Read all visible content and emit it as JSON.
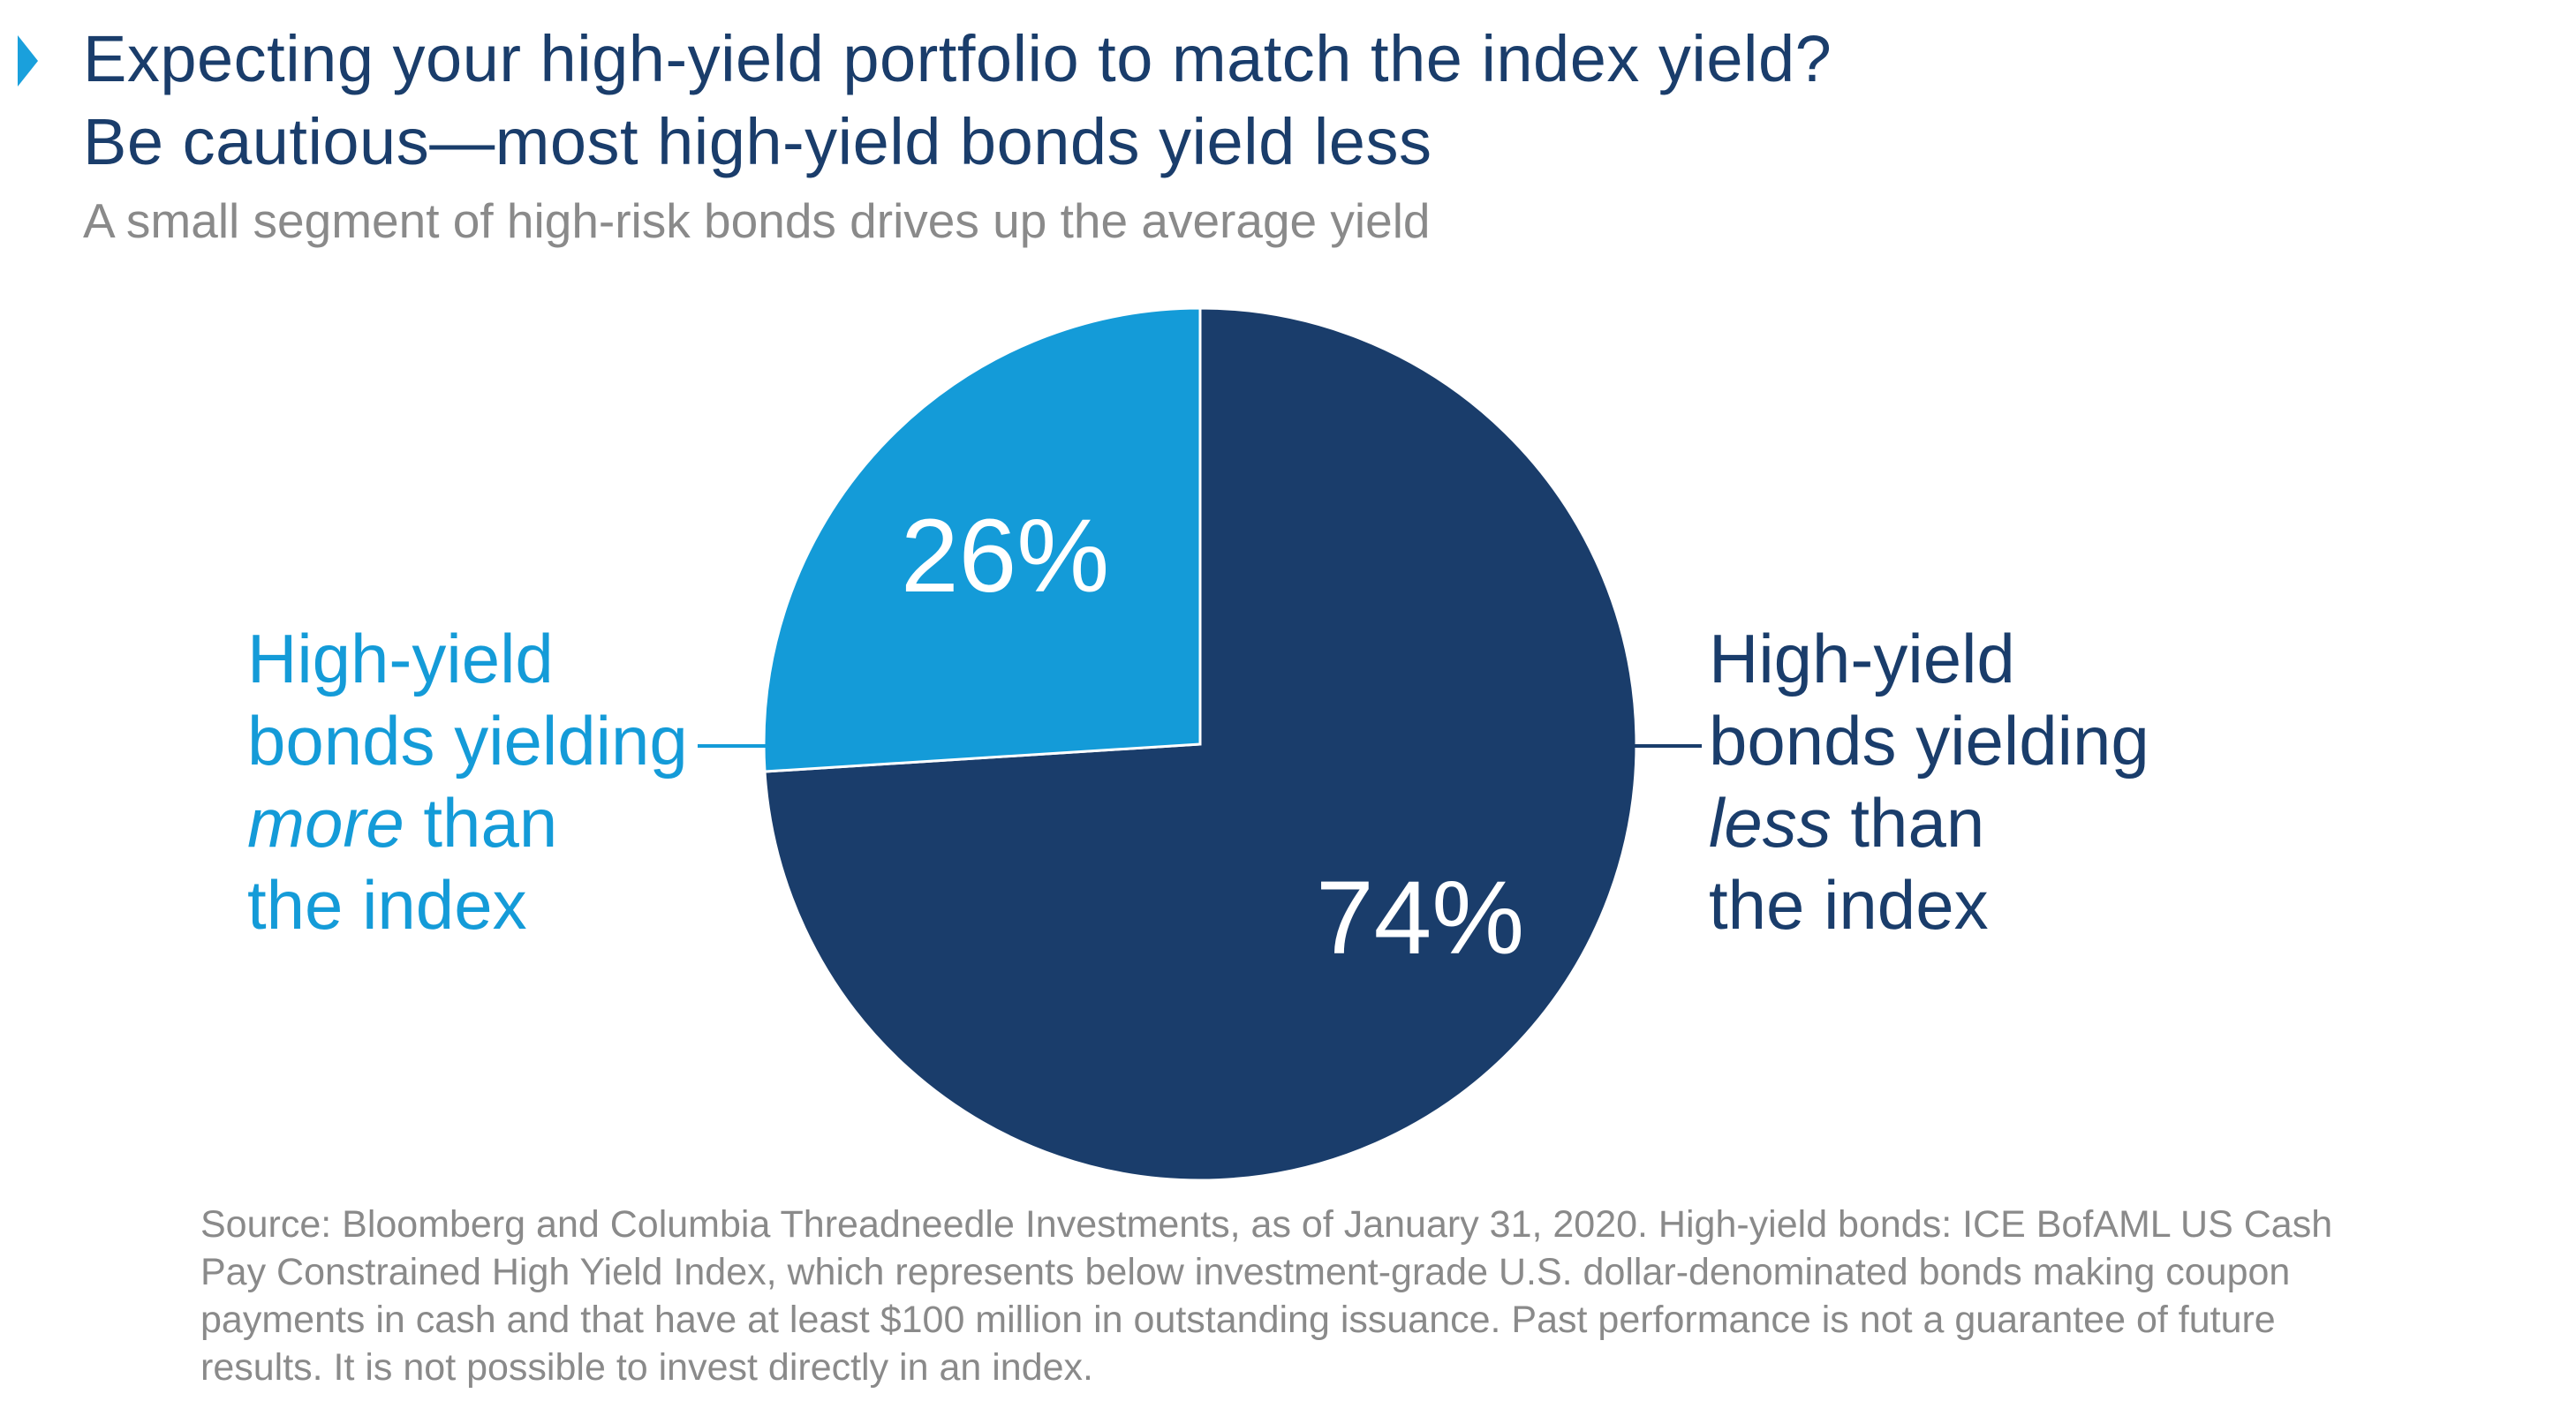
{
  "header": {
    "title_line1": "Expecting your high-yield portfolio to match the index yield?",
    "title_line2": "Be cautious—most high-yield bonds yield less",
    "subtitle": "A small segment of high-risk bonds drives up the average yield",
    "marker_color": "#1aa0dc"
  },
  "chart_data": {
    "type": "pie",
    "title": "Expecting your high-yield portfolio to match the index yield? Be cautious—most high-yield bonds yield less",
    "subtitle": "A small segment of high-risk bonds drives up the average yield",
    "slices": [
      {
        "label": "High-yield bonds yielding less than the index",
        "value": 74,
        "display": "74%",
        "color": "#1a3d6b"
      },
      {
        "label": "High-yield bonds yielding more than the index",
        "value": 26,
        "display": "26%",
        "color": "#149bd8"
      }
    ]
  },
  "labels": {
    "left": {
      "line1": "High-yield",
      "line2": "bonds yielding",
      "line3_emph": "more",
      "line3_rest": " than",
      "line4": "the index"
    },
    "right": {
      "line1": "High-yield",
      "line2": "bonds yielding",
      "line3_emph": "less",
      "line3_rest": " than",
      "line4": "the index"
    }
  },
  "source": {
    "line1": "Source: Bloomberg and Columbia Threadneedle Investments, as of January 31, 2020. High-yield bonds: ICE BofAML US Cash",
    "line2": "Pay Constrained High Yield Index, which represents below investment-grade U.S. dollar-denominated bonds making coupon",
    "line3": "payments in cash and that have at least $100 million in outstanding issuance. Past performance is not a guarantee of future",
    "line4": "results. It is not possible to invest directly in an index."
  }
}
